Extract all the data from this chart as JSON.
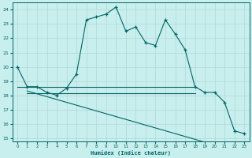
{
  "xlabel": "Humidex (Indice chaleur)",
  "background_color": "#c8eeed",
  "grid_color": "#b0d8d8",
  "line_color": "#006666",
  "x": [
    0,
    1,
    2,
    3,
    4,
    5,
    6,
    7,
    8,
    9,
    10,
    11,
    12,
    13,
    14,
    15,
    16,
    17,
    18,
    19,
    20,
    21,
    22,
    23
  ],
  "y_main": [
    20.0,
    18.6,
    18.6,
    18.2,
    18.0,
    18.5,
    19.5,
    23.3,
    23.5,
    23.7,
    24.2,
    22.5,
    22.8,
    21.7,
    21.5,
    23.3,
    22.3,
    21.2,
    18.6,
    18.2,
    18.2,
    17.5,
    15.5,
    15.3
  ],
  "y_flat_start": 0,
  "y_flat_end": 18,
  "y_flat_val": 18.6,
  "y_flat2_start": 0,
  "y_flat2_end": 18,
  "y_flat2_val": 18.15,
  "x_flat": [
    0,
    1,
    2,
    3,
    4,
    5,
    6,
    7,
    8,
    9,
    10,
    11,
    12,
    13,
    14,
    15,
    16,
    17,
    18
  ],
  "y_flat": [
    18.6,
    18.6,
    18.6,
    18.6,
    18.6,
    18.6,
    18.6,
    18.6,
    18.6,
    18.6,
    18.6,
    18.6,
    18.6,
    18.6,
    18.6,
    18.6,
    18.6,
    18.6,
    18.6
  ],
  "x_diag": [
    1,
    2,
    3,
    4,
    5,
    6,
    7,
    8,
    9,
    10,
    11,
    12,
    13,
    14,
    15,
    16,
    17,
    18,
    19,
    20,
    21,
    22,
    23
  ],
  "y_diag": [
    18.3,
    18.1,
    17.9,
    17.7,
    17.5,
    17.3,
    17.1,
    16.9,
    16.7,
    16.5,
    16.3,
    16.1,
    15.9,
    15.7,
    15.5,
    15.3,
    15.1,
    14.9,
    14.7,
    14.5,
    14.3,
    14.1,
    13.9
  ],
  "ylim": [
    14.75,
    24.5
  ],
  "xlim": [
    -0.5,
    23.5
  ],
  "yticks": [
    15,
    16,
    17,
    18,
    19,
    20,
    21,
    22,
    23,
    24
  ],
  "xticks": [
    0,
    1,
    2,
    3,
    4,
    5,
    6,
    7,
    8,
    9,
    10,
    11,
    12,
    13,
    14,
    15,
    16,
    17,
    18,
    19,
    20,
    21,
    22,
    23
  ],
  "marker_size": 3.5,
  "lw": 0.8
}
